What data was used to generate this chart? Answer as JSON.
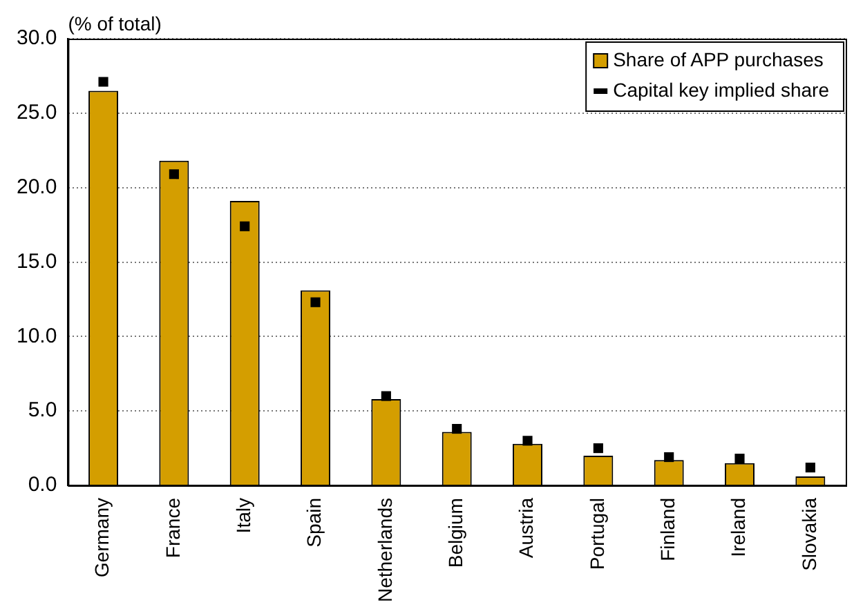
{
  "chart_data": {
    "type": "bar",
    "ylabel": "(% of total)",
    "categories": [
      "Germany",
      "France",
      "Italy",
      "Spain",
      "Netherlands",
      "Belgium",
      "Austria",
      "Portugal",
      "Finland",
      "Ireland",
      "Slovakia"
    ],
    "series": [
      {
        "name": "Share of APP purchases",
        "color": "#d49e00",
        "values": [
          26.5,
          21.8,
          19.1,
          13.1,
          5.8,
          3.6,
          2.8,
          2.0,
          1.7,
          1.5,
          0.6
        ]
      },
      {
        "name": "Capital key implied share",
        "type": "scatter",
        "marker": "square",
        "color": "#000000",
        "values": [
          27.1,
          20.9,
          17.4,
          12.3,
          6.0,
          3.8,
          3.0,
          2.5,
          1.9,
          1.8,
          1.2
        ]
      }
    ],
    "ylim": [
      0,
      30
    ],
    "yticks": [
      {
        "value": 0,
        "label": "0.0"
      },
      {
        "value": 5,
        "label": "5.0"
      },
      {
        "value": 10,
        "label": "10.0"
      },
      {
        "value": 15,
        "label": "15.0"
      },
      {
        "value": 20,
        "label": "20.0"
      },
      {
        "value": 25,
        "label": "25.0"
      },
      {
        "value": 30,
        "label": "30.0"
      }
    ],
    "grid": "y",
    "legend": "top right"
  }
}
